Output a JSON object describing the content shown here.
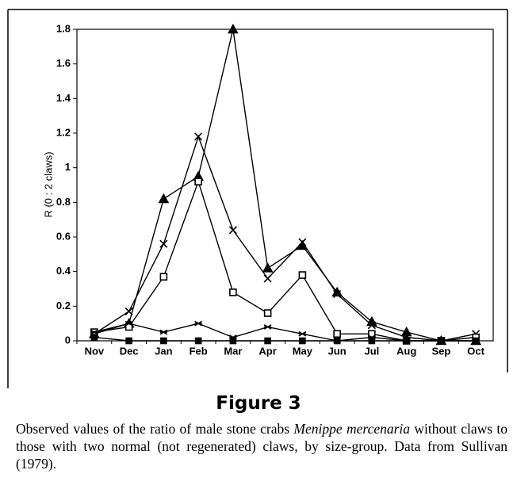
{
  "chart_data": {
    "type": "line",
    "y_label": "R (0 : 2 claws)",
    "categories": [
      "Nov",
      "Dec",
      "Jan",
      "Feb",
      "Mar",
      "Apr",
      "May",
      "Jun",
      "Jul",
      "Aug",
      "Sep",
      "Oct"
    ],
    "ylim": [
      0,
      1.8
    ],
    "yticks": [
      0,
      0.2,
      0.4,
      0.6,
      0.8,
      1,
      1.2,
      1.4,
      1.6,
      1.8
    ],
    "series": [
      {
        "marker": "triangle",
        "color": "#000000",
        "values": [
          0.04,
          0.1,
          0.82,
          0.95,
          1.8,
          0.42,
          0.55,
          0.28,
          0.11,
          0.05,
          0,
          0
        ]
      },
      {
        "marker": "cross",
        "color": "#000000",
        "values": [
          0.04,
          0.17,
          0.56,
          1.18,
          0.64,
          0.36,
          0.57,
          0.27,
          0.09,
          0.02,
          0,
          0.04
        ]
      },
      {
        "marker": "open-square",
        "color": "#000000",
        "values": [
          0.05,
          0.08,
          0.37,
          0.92,
          0.28,
          0.16,
          0.38,
          0.04,
          0.04,
          0,
          0,
          0.02
        ]
      },
      {
        "marker": "asterisk",
        "color": "#000000",
        "values": [
          0.05,
          0.1,
          0.05,
          0.1,
          0.02,
          0.08,
          0.04,
          0,
          0.02,
          0,
          0,
          0
        ]
      },
      {
        "marker": "filled-square",
        "color": "#000000",
        "values": [
          0.02,
          0,
          0,
          0,
          0,
          0,
          0,
          0,
          0,
          0,
          0,
          0
        ]
      }
    ]
  },
  "figure_label": "Figure 3",
  "caption": [
    "Observed values of the ratio of male stone crabs",
    "Menippe mercenaria",
    "without claws to those with two normal (not regenerated) claws, by size-group. Data from Sullivan (1979)."
  ]
}
